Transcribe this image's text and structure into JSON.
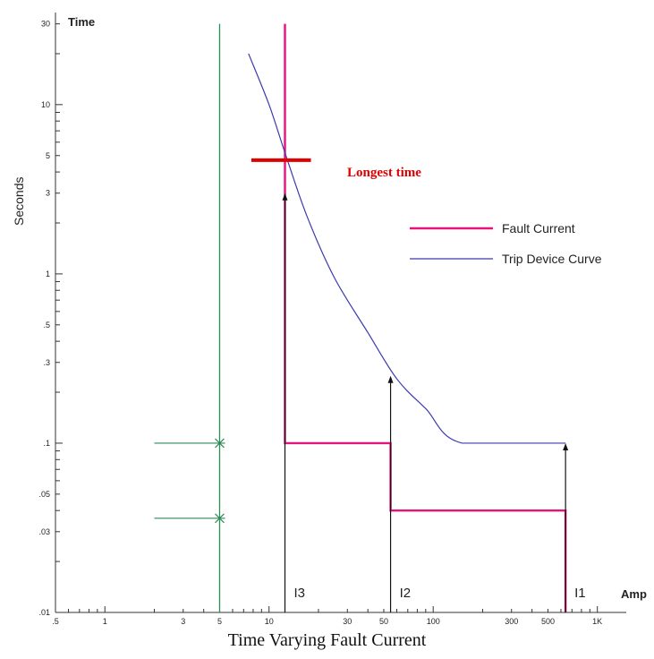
{
  "chart_data": {
    "type": "line",
    "title": "Time Varying Fault Current",
    "xlabel": "Amp",
    "ylabel_top": "Time",
    "ylabel_side": "Seconds",
    "x_scale": "log",
    "y_scale": "log",
    "xlim": [
      0.5,
      1500
    ],
    "ylim": [
      0.01,
      35
    ],
    "x_ticks": [
      {
        "value": 0.5,
        "label": ".5"
      },
      {
        "value": 1,
        "label": "1"
      },
      {
        "value": 3,
        "label": "3"
      },
      {
        "value": 5,
        "label": "5"
      },
      {
        "value": 10,
        "label": "10"
      },
      {
        "value": 30,
        "label": "30"
      },
      {
        "value": 50,
        "label": "50"
      },
      {
        "value": 100,
        "label": "100"
      },
      {
        "value": 300,
        "label": "300"
      },
      {
        "value": 500,
        "label": "500"
      },
      {
        "value": 1000,
        "label": "1K"
      }
    ],
    "y_ticks": [
      {
        "value": 0.01,
        "label": ".01"
      },
      {
        "value": 0.03,
        "label": ".03"
      },
      {
        "value": 0.05,
        "label": ".05"
      },
      {
        "value": 0.1,
        "label": ".1"
      },
      {
        "value": 0.3,
        "label": ".3"
      },
      {
        "value": 0.5,
        "label": ".5"
      },
      {
        "value": 1,
        "label": "1"
      },
      {
        "value": 3,
        "label": "3"
      },
      {
        "value": 5,
        "label": "5"
      },
      {
        "value": 10,
        "label": "10"
      },
      {
        "value": 30,
        "label": "30"
      }
    ],
    "series": [
      {
        "name": "Fault Current",
        "color": "#e8127c",
        "points": [
          [
            12.5,
            30
          ],
          [
            12.5,
            0.1
          ],
          [
            55,
            0.1
          ],
          [
            55,
            0.04
          ],
          [
            640,
            0.04
          ],
          [
            640,
            0.01
          ]
        ]
      },
      {
        "name": "Trip Device Curve",
        "color": "#3b3bb0",
        "points": [
          [
            7.5,
            20
          ],
          [
            10,
            10
          ],
          [
            12.5,
            5.2
          ],
          [
            17,
            2.2
          ],
          [
            25,
            0.95
          ],
          [
            40,
            0.45
          ],
          [
            60,
            0.24
          ],
          [
            90,
            0.16
          ],
          [
            150,
            0.1
          ],
          [
            640,
            0.1
          ]
        ]
      }
    ],
    "reference_line": {
      "x": 5,
      "color": "#2e8b57",
      "markers": [
        {
          "y": 0.1
        },
        {
          "y": 0.036
        }
      ],
      "marker_x_range": [
        2,
        12
      ]
    },
    "current_markers": [
      {
        "label": "I3",
        "x": 12.5,
        "arrow_to": 3
      },
      {
        "label": "I2",
        "x": 55,
        "arrow_to": 0.25
      },
      {
        "label": "I1",
        "x": 640,
        "arrow_to": 0.1
      }
    ],
    "annotation": {
      "text": "Longest time",
      "color": "#e00000",
      "y": 4.7,
      "x_from": 7.8,
      "x_to": 18
    },
    "legend": {
      "position": "right",
      "entries": [
        "Fault Current",
        "Trip Device Curve"
      ]
    },
    "grid": false
  }
}
